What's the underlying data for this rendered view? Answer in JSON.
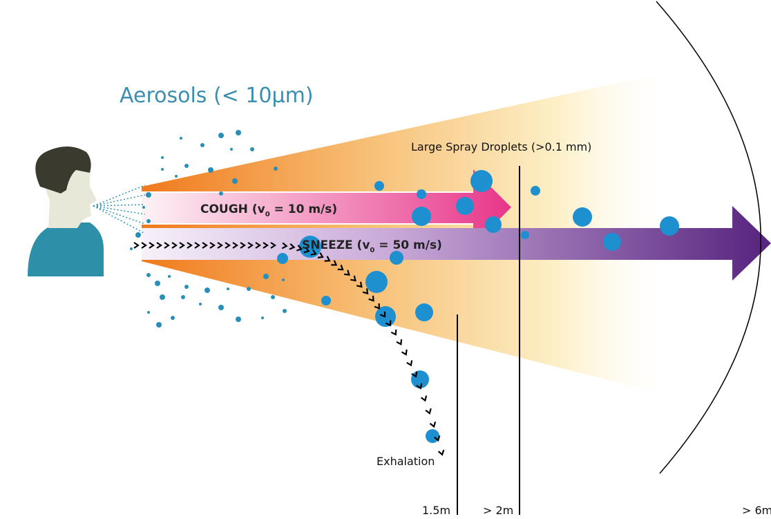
{
  "title": "Aerosols (< 10μm)",
  "droplets_label": "Large Spray Droplets (>0.1 mm)",
  "cough": {
    "prefix": "COUGH (v",
    "subscript": "0",
    "suffix": " = 10 m/s)"
  },
  "sneeze": {
    "prefix": "SNEEZE (v",
    "subscript": "0",
    "suffix": " = 50 m/s)"
  },
  "exhalation": "Exhalation",
  "distances": [
    "1.5m",
    "> 2m",
    "> 6m"
  ]
}
